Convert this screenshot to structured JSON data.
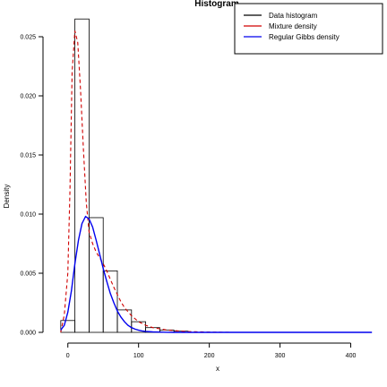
{
  "chart_data": {
    "type": "bar",
    "title": "Histogram",
    "xlabel": "x",
    "ylabel": "Density",
    "xlim": [
      -25,
      450
    ],
    "ylim": [
      0,
      0.0275
    ],
    "x_ticks": [
      0,
      100,
      200,
      300,
      400
    ],
    "x_tick_labels": [
      "0",
      "100",
      "200",
      "300",
      "400"
    ],
    "y_ticks": [
      0.0,
      0.005,
      0.01,
      0.015,
      0.02,
      0.025
    ],
    "y_tick_labels": [
      "0.000",
      "0.005",
      "0.010",
      "0.015",
      "0.020",
      "0.025"
    ],
    "bin_edges": [
      -10,
      10,
      30,
      50,
      70,
      90,
      110,
      130,
      150,
      170
    ],
    "bin_heights": [
      0.001,
      0.0265,
      0.0097,
      0.0052,
      0.0019,
      0.0009,
      0.0004,
      0.0002,
      0.0001
    ],
    "series": [
      {
        "name": "Data histogram",
        "color": "#000000",
        "kind": "histogram"
      },
      {
        "name": "Mixture density",
        "color": "#d00000",
        "dashed": true,
        "x": [
          -10,
          -5,
          0,
          3,
          6,
          10,
          14,
          18,
          22,
          26,
          30,
          35,
          40,
          45,
          50,
          55,
          60,
          65,
          70,
          75,
          80,
          90,
          100,
          110,
          120,
          130,
          140,
          150,
          160,
          170,
          180,
          200,
          230
        ],
        "y": [
          0.0,
          0.0015,
          0.005,
          0.012,
          0.022,
          0.0255,
          0.0245,
          0.0205,
          0.0155,
          0.011,
          0.0085,
          0.0075,
          0.0068,
          0.0063,
          0.0058,
          0.0052,
          0.0045,
          0.0038,
          0.0032,
          0.0026,
          0.0021,
          0.0014,
          0.0009,
          0.0006,
          0.0004,
          0.0003,
          0.0002,
          0.00015,
          0.0001,
          7e-05,
          5e-05,
          2e-05,
          0.0
        ]
      },
      {
        "name": "Regular Gibbs density",
        "color": "#0000ee",
        "dashed": false,
        "x": [
          -10,
          -5,
          0,
          5,
          10,
          15,
          20,
          25,
          30,
          35,
          40,
          45,
          50,
          55,
          60,
          65,
          70,
          75,
          80,
          85,
          90,
          95,
          100,
          105,
          110,
          120,
          130,
          140,
          150,
          170,
          200,
          250,
          300,
          350,
          400,
          430
        ],
        "y": [
          0.0002,
          0.0006,
          0.0017,
          0.0035,
          0.0058,
          0.0078,
          0.0092,
          0.0098,
          0.0096,
          0.0089,
          0.0078,
          0.0066,
          0.0054,
          0.0043,
          0.0033,
          0.0025,
          0.0018,
          0.0013,
          0.0009,
          0.0006,
          0.0004,
          0.00027,
          0.00018,
          0.00012,
          8e-05,
          4e-05,
          2e-05,
          1e-05,
          0.0,
          0.0,
          0.0,
          0.0,
          0.0,
          0.0,
          0.0,
          0.0
        ]
      }
    ],
    "legend_position": "top-right"
  }
}
